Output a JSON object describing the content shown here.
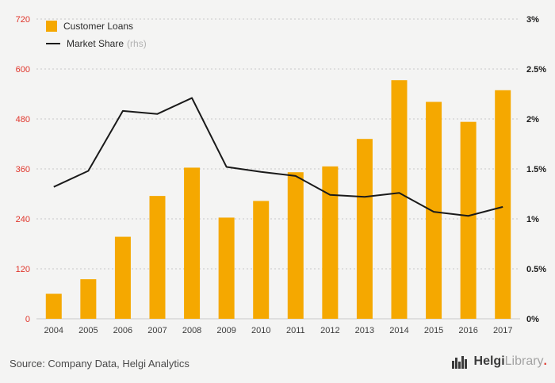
{
  "chart_data": {
    "type": "bar",
    "categories": [
      "2004",
      "2005",
      "2006",
      "2007",
      "2008",
      "2009",
      "2010",
      "2011",
      "2012",
      "2013",
      "2014",
      "2015",
      "2016",
      "2017"
    ],
    "series": [
      {
        "name": "Customer Loans",
        "type": "bar",
        "axis": "left",
        "color": "#F5A800",
        "values": [
          60,
          95,
          197,
          295,
          363,
          243,
          283,
          352,
          366,
          432,
          573,
          521,
          473,
          549
        ]
      },
      {
        "name": "Market Share",
        "type": "line",
        "axis": "right",
        "color": "#1a1a1a",
        "values": [
          1.32,
          1.48,
          2.08,
          2.05,
          2.21,
          1.52,
          1.47,
          1.43,
          1.24,
          1.22,
          1.26,
          1.07,
          1.03,
          1.12
        ]
      }
    ],
    "left_axis": {
      "min": 0,
      "max": 720,
      "tick_values": [
        0,
        120,
        240,
        360,
        480,
        600,
        720
      ],
      "tick_labels": [
        "0",
        "120",
        "240",
        "360",
        "480",
        "600",
        "720"
      ],
      "color": "#e0352b"
    },
    "right_axis": {
      "min": 0,
      "max": 3,
      "tick_values": [
        0,
        0.5,
        1,
        1.5,
        2,
        2.5,
        3
      ],
      "tick_labels": [
        "0%",
        "0.5%",
        "1%",
        "1.5%",
        "2%",
        "2.5%",
        "3%"
      ],
      "color": "#1a1a1a"
    },
    "legend": [
      {
        "label": "Customer Loans",
        "suffix": ""
      },
      {
        "label": "Market Share",
        "suffix": "(rhs)"
      }
    ],
    "grid": "dotted-horizontal",
    "x_label_color": "#3d3d3d"
  },
  "footer": {
    "source": "Source: Company Data, Helgi Analytics",
    "logo": {
      "bold": "Helgi",
      "light": "Library",
      "dot": "."
    }
  }
}
